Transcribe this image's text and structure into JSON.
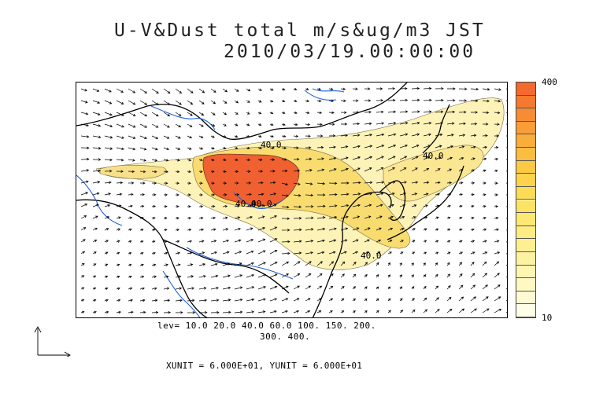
{
  "title": {
    "line1": "U-V&Dust total m/s&ug/m3 JST",
    "line2": "2010/03/19.00:00:00"
  },
  "map": {
    "contour_labels": [
      "40.0",
      "40.0",
      "40.0",
      "40.0",
      "40.0"
    ],
    "colors": {
      "coast": "#000000",
      "rivers": "#1f5fd8",
      "vectors": "#000000",
      "high": "#f06030",
      "mid": "#f8d848",
      "low": "#fdf3b8"
    }
  },
  "colorbar": {
    "max_label": "400",
    "min_label": "10",
    "colors": [
      "#f26a2e",
      "#f47a30",
      "#f68c34",
      "#f89d38",
      "#f9ae3c",
      "#fabd40",
      "#fbc944",
      "#fcd34a",
      "#fcdc56",
      "#fde364",
      "#fde873",
      "#fdec82",
      "#fdef92",
      "#fdf2a2",
      "#fef5b2",
      "#fef8c2",
      "#fefad4",
      "#fffde6"
    ]
  },
  "levels": {
    "line1": "lev= 10.0 20.0 40.0 60.0 100. 150. 200.",
    "line2": "300. 400."
  },
  "units": "XUNIT = 6.000E+01, YUNIT = 6.000E+01"
}
